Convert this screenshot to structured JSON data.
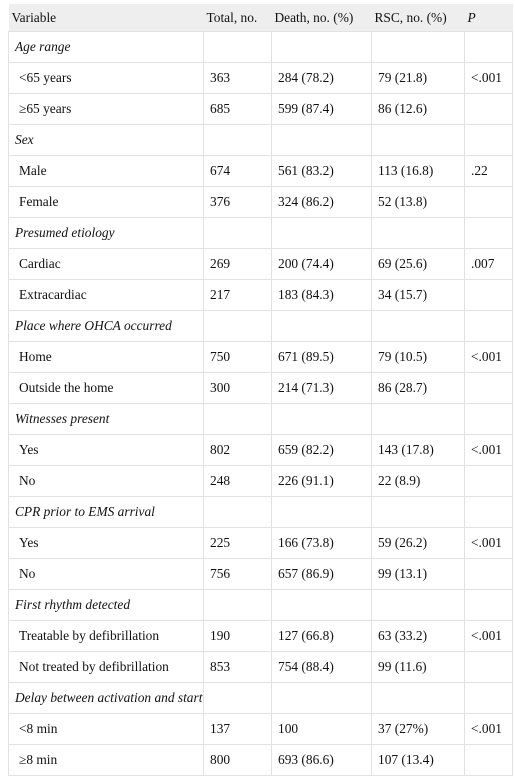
{
  "table": {
    "headers": {
      "variable": "Variable",
      "total": "Total, no.",
      "death": "Death, no. (%)",
      "rsc": "RSC, no. (%)",
      "p": "P"
    },
    "sections": [
      {
        "title": "Age range",
        "rows": [
          {
            "label": "<65 years",
            "total": "363",
            "death": "284 (78.2)",
            "rsc": "79 (21.8)",
            "p": "<.001"
          },
          {
            "label": "≥65 years",
            "total": "685",
            "death": "599 (87.4)",
            "rsc": "86 (12.6)",
            "p": ""
          }
        ]
      },
      {
        "title": "Sex",
        "rows": [
          {
            "label": "Male",
            "total": "674",
            "death": "561 (83.2)",
            "rsc": "113 (16.8)",
            "p": ".22"
          },
          {
            "label": "Female",
            "total": "376",
            "death": "324 (86.2)",
            "rsc": "52 (13.8)",
            "p": ""
          }
        ]
      },
      {
        "title": "Presumed etiology",
        "rows": [
          {
            "label": "Cardiac",
            "total": "269",
            "death": "200 (74.4)",
            "rsc": "69 (25.6)",
            "p": ".007"
          },
          {
            "label": "Extracardiac",
            "total": "217",
            "death": "183 (84.3)",
            "rsc": "34 (15.7)",
            "p": ""
          }
        ]
      },
      {
        "title": "Place where OHCA occurred",
        "rows": [
          {
            "label": "Home",
            "total": "750",
            "death": "671 (89.5)",
            "rsc": "79 (10.5)",
            "p": "<.001"
          },
          {
            "label": "Outside the home",
            "total": "300",
            "death": "214 (71.3)",
            "rsc": "86 (28.7)",
            "p": ""
          }
        ]
      },
      {
        "title": "Witnesses present",
        "rows": [
          {
            "label": "Yes",
            "total": "802",
            "death": "659 (82.2)",
            "rsc": "143 (17.8)",
            "p": "<.001"
          },
          {
            "label": "No",
            "total": "248",
            "death": "226 (91.1)",
            "rsc": "22 (8.9)",
            "p": ""
          }
        ]
      },
      {
        "title": "CPR prior to EMS arrival",
        "rows": [
          {
            "label": "Yes",
            "total": "225",
            "death": "166 (73.8)",
            "rsc": "59 (26.2)",
            "p": "<.001"
          },
          {
            "label": "No",
            "total": "756",
            "death": "657 (86.9)",
            "rsc": "99 (13.1)",
            "p": ""
          }
        ]
      },
      {
        "title": "First rhythm detected",
        "rows": [
          {
            "label": "Treatable by defibrillation",
            "total": "190",
            "death": "127 (66.8)",
            "rsc": "63 (33.2)",
            "p": "<.001"
          },
          {
            "label": "Not treated by defibrillation",
            "total": "853",
            "death": "754 (88.4)",
            "rsc": "99 (11.6)",
            "p": ""
          }
        ]
      },
      {
        "title": "Delay between activation and start of life support",
        "rows": [
          {
            "label": "<8 min",
            "total": "137",
            "death": "100",
            "rsc": "37 (27%)",
            "p": "<.001"
          },
          {
            "label": "≥8 min",
            "total": "800",
            "death": "693 (86.6)",
            "rsc": "107 (13.4)",
            "p": ""
          }
        ]
      }
    ]
  }
}
